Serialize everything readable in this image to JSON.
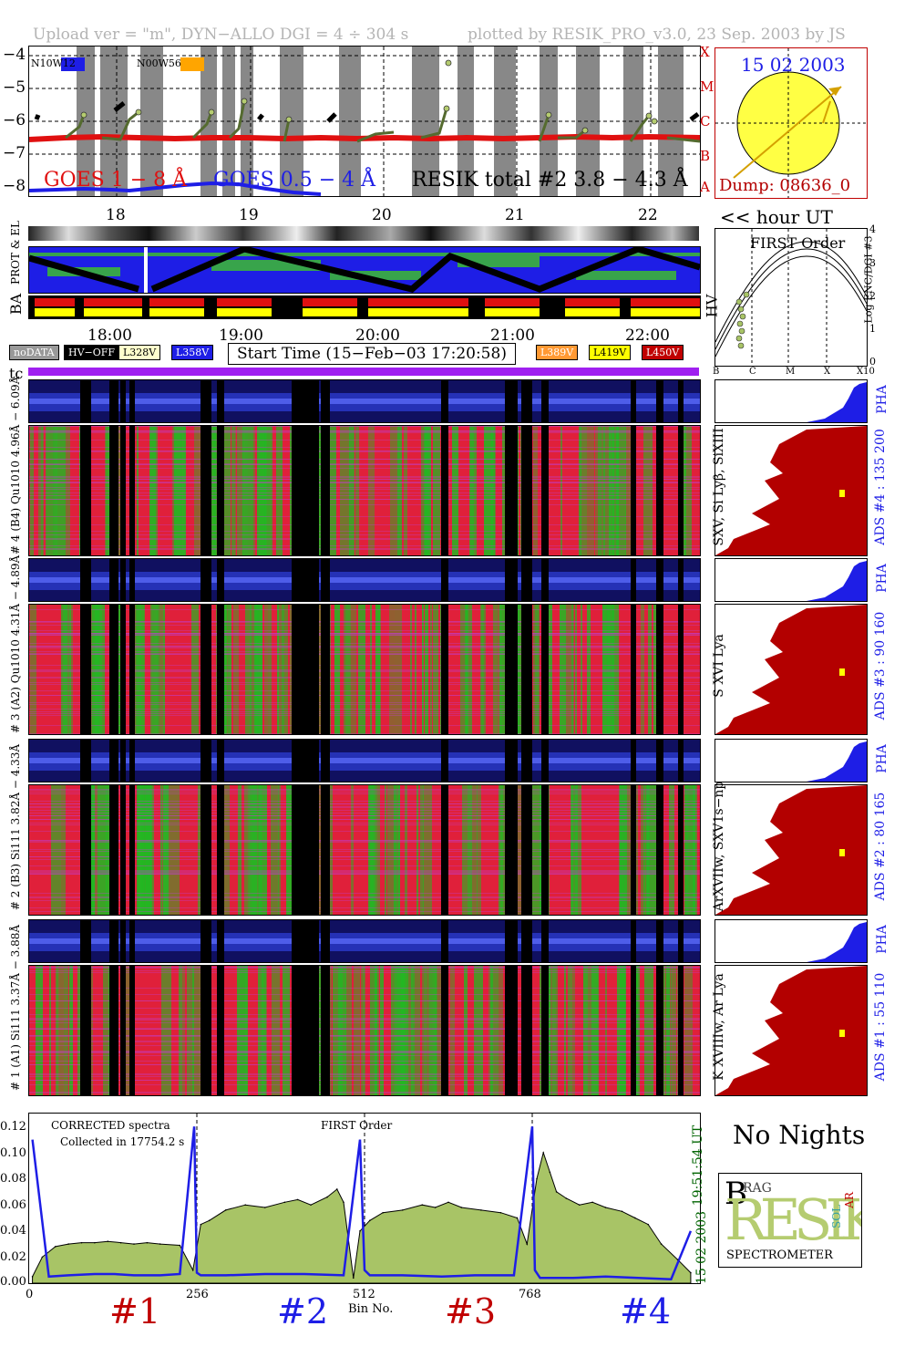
{
  "header": {
    "left": "Upload ver = \"m\", DYN−ALLO DGI =   4 ÷ 304 s",
    "right": "plotted by RESIK_PRO_v3.0, 23 Sep. 2003 by JS"
  },
  "goes": {
    "y_ticks": [
      "−4",
      "−5",
      "−6",
      "−7",
      "−8"
    ],
    "class_labels": [
      "X",
      "M",
      "C",
      "B",
      "A"
    ],
    "ar_labels": [
      "N10W12",
      "N00W56"
    ],
    "legend_goes18": "GOES 1 − 8 Å",
    "legend_goes054": "GOES 0.5 − 4 Å",
    "legend_resik": "RESIK total #2  3.8 − 4.3 Å",
    "hour_ticks": [
      "18",
      "19",
      "20",
      "21",
      "22"
    ],
    "hour_axis_label": "<< hour UT"
  },
  "sun": {
    "date": "15 02 2003",
    "dump": "Dump: 08636_0"
  },
  "ephemeris": {
    "prot_label": "PROT & EL",
    "ba_label": "BA",
    "hv_label": "HV",
    "time_ticks": [
      "18:00",
      "19:00",
      "20:00",
      "21:00",
      "22:00"
    ]
  },
  "first_order": {
    "title": "FIRST Order",
    "ylabel": "Log ENC/DGI #3",
    "yticks": [
      "4",
      "3",
      "2",
      "1",
      "0"
    ],
    "xticks": [
      "B",
      "C",
      "M",
      "X",
      "X10"
    ]
  },
  "legend_row": {
    "nodata": "noDATA",
    "hvoff": "HV−OFF",
    "v1": "L328V",
    "v2": "L358V",
    "start_time": "Start Time (15−Feb−03 17:20:58)",
    "v3": "L389V",
    "v4": "L419V",
    "v5": "L450V"
  },
  "tc_label": "tc",
  "colors": {
    "red": "#d11a1a",
    "blue": "#1e1ee6",
    "green_fill": "#a8c466",
    "purple": "#a020f0",
    "dark_red": "#b30000",
    "sun_yellow": "#ffff44",
    "sun_border": "#c00000",
    "orange": "#ffa500"
  },
  "channels": [
    {
      "pha_label": "# 4 (B4) Qu1010 4.96Å − 6.09Å",
      "lines": "SXV, Si Lyβ, SiXIII",
      "ads": "ADS #4 :   135 200"
    },
    {
      "pha_label": "# 3 (A2) Qu1010  4.31Å − 4.89Å",
      "lines": "S XVI Lya",
      "ads": "ADS #3 :    90 160"
    },
    {
      "pha_label": "# 2 (B3) Si111  3.82Å − 4.33Å",
      "lines": "ArXVIIw, SXV1s−np",
      "ads": "ADS #2 :    80 165"
    },
    {
      "pha_label": "# 1 (A1) Si111  3.37Å − 3.88Å",
      "lines": "K XVIIIw, Ar Lya",
      "ads": "ADS #1 :    55 110"
    }
  ],
  "pha_word": "PHA",
  "spectrum": {
    "title_left": "CORRECTED spectra",
    "collected": "Collected in 17754.2 s",
    "title_center": "FIRST Order",
    "yticks": [
      "0.12",
      "0.10",
      "0.08",
      "0.06",
      "0.04",
      "0.02",
      "0.00"
    ],
    "xticks": [
      "0",
      "256",
      "512",
      "768"
    ],
    "xlabel": "Bin No.",
    "time_label": "19:51:54 UT",
    "date_label": "15 02 2003",
    "channel_labels": [
      "#1",
      "#2",
      "#3",
      "#4"
    ]
  },
  "no_nights": "No Nights",
  "logo": {
    "spectrometer": "SPECTROMETER",
    "letters": "RESIK",
    "small_b": "B",
    "small_ragg": "RAG",
    "small_sol": "SOL",
    "small_ar": "AR"
  },
  "chart_data": {
    "type": "line",
    "title": "CORRECTED spectra",
    "xlabel": "Bin No.",
    "ylabel": "",
    "xlim": [
      0,
      1024
    ],
    "ylim": [
      0,
      0.13
    ],
    "xticks": [
      0,
      256,
      512,
      768
    ],
    "segment_boundaries": [
      256,
      512,
      768
    ],
    "series": [
      {
        "name": "",
        "x": [
          5,
          20,
          40,
          60,
          80,
          100,
          120,
          140,
          160,
          180,
          200,
          230,
          250,
          262,
          275,
          300,
          330,
          360,
          390,
          410,
          430,
          455,
          470,
          480,
          495,
          505,
          520,
          540,
          570,
          600,
          620,
          640,
          660,
          690,
          720,
          745,
          760,
          775,
          785,
          795,
          805,
          820,
          840,
          860,
          880,
          905,
          925,
          945,
          965,
          990,
          1010
        ],
        "values": [
          0.005,
          0.02,
          0.028,
          0.03,
          0.031,
          0.031,
          0.032,
          0.031,
          0.03,
          0.031,
          0.03,
          0.029,
          0.01,
          0.045,
          0.048,
          0.056,
          0.06,
          0.058,
          0.062,
          0.064,
          0.06,
          0.066,
          0.072,
          0.062,
          0.004,
          0.04,
          0.048,
          0.054,
          0.056,
          0.06,
          0.058,
          0.062,
          0.058,
          0.056,
          0.054,
          0.05,
          0.03,
          0.08,
          0.1,
          0.085,
          0.07,
          0.065,
          0.06,
          0.062,
          0.058,
          0.055,
          0.05,
          0.045,
          0.03,
          0.018,
          0.008
        ]
      },
      {
        "name": "",
        "x": [
          5,
          30,
          60,
          100,
          130,
          160,
          200,
          230,
          252,
          256,
          262,
          300,
          360,
          420,
          480,
          505,
          512,
          520,
          570,
          630,
          680,
          740,
          768,
          772,
          780,
          830,
          880,
          930,
          980,
          1010
        ],
        "values": [
          0.11,
          0.005,
          0.006,
          0.007,
          0.007,
          0.006,
          0.006,
          0.007,
          0.12,
          0.008,
          0.006,
          0.006,
          0.007,
          0.007,
          0.006,
          0.11,
          0.01,
          0.006,
          0.006,
          0.005,
          0.006,
          0.006,
          0.12,
          0.01,
          0.004,
          0.004,
          0.005,
          0.004,
          0.003,
          0.04
        ]
      }
    ]
  }
}
